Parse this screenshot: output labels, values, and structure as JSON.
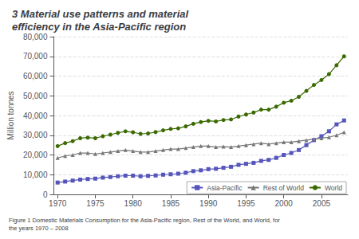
{
  "chart_data": {
    "type": "line",
    "title": "3 Material use patterns and material\nefficiency in the Asia-Pacific region",
    "ylabel": "Million tonnes",
    "annotations": [
      "Figure 1 Domestic Materials Consumption for the Asia-Pacific region, Rest of the World, and World, for\nthe years 1970 – 2008"
    ],
    "x": [
      1970,
      1971,
      1972,
      1973,
      1974,
      1975,
      1976,
      1977,
      1978,
      1979,
      1980,
      1981,
      1982,
      1983,
      1984,
      1985,
      1986,
      1987,
      1988,
      1989,
      1990,
      1991,
      1992,
      1993,
      1994,
      1995,
      1996,
      1997,
      1998,
      1999,
      2000,
      2001,
      2002,
      2003,
      2004,
      2005,
      2006,
      2007,
      2008
    ],
    "series": [
      {
        "name": "Asia-Pacific",
        "color": "#5555BB",
        "marker": "square",
        "values": [
          6000,
          6500,
          7000,
          7500,
          7800,
          8000,
          8500,
          8800,
          9200,
          9500,
          9500,
          9200,
          9400,
          9600,
          10000,
          10200,
          10500,
          11000,
          11800,
          12200,
          12800,
          13000,
          13500,
          14000,
          15000,
          15500,
          16000,
          17000,
          17500,
          18500,
          20000,
          21000,
          22500,
          25000,
          27500,
          29500,
          32000,
          35500,
          37500
        ]
      },
      {
        "name": "Rest of World",
        "color": "#777777",
        "marker": "triangle",
        "values": [
          18500,
          19500,
          20000,
          21000,
          21000,
          20500,
          21000,
          21500,
          22000,
          22500,
          22000,
          21500,
          21500,
          22000,
          22500,
          23000,
          23000,
          23500,
          24000,
          24500,
          24500,
          24000,
          24200,
          24000,
          24500,
          25000,
          25500,
          26000,
          25500,
          26000,
          26500,
          26500,
          27000,
          27500,
          28000,
          28500,
          29000,
          30000,
          31500
        ]
      },
      {
        "name": "World",
        "color": "#3A6A00",
        "marker": "circle",
        "values": [
          24500,
          26000,
          27000,
          28500,
          28800,
          28500,
          29500,
          30300,
          31200,
          32000,
          31500,
          30700,
          30900,
          31600,
          32500,
          33200,
          33500,
          34500,
          35800,
          36700,
          37300,
          37000,
          37700,
          38000,
          39500,
          40500,
          41500,
          43000,
          43000,
          44500,
          46500,
          47500,
          49500,
          52500,
          55500,
          58000,
          61000,
          65500,
          70000
        ]
      }
    ],
    "xlim": [
      1969.5,
      2008.5
    ],
    "xticks": [
      1970,
      1975,
      1980,
      1985,
      1990,
      1995,
      2000,
      2005
    ],
    "ylim": [
      0,
      80000
    ],
    "yticks": [
      0,
      {
        "value": 10000,
        "label": "10,000"
      },
      {
        "value": 20000,
        "label": "20,000"
      },
      {
        "value": 30000,
        "label": "30,000"
      },
      {
        "value": 40000,
        "label": "40,000"
      },
      {
        "value": 50000,
        "label": "50,000"
      },
      {
        "value": 60000,
        "label": "60,000"
      },
      {
        "value": 70000,
        "label": "70,000"
      },
      {
        "value": 80000,
        "label": "80,000"
      }
    ],
    "grid": true,
    "legend": "lower right"
  }
}
